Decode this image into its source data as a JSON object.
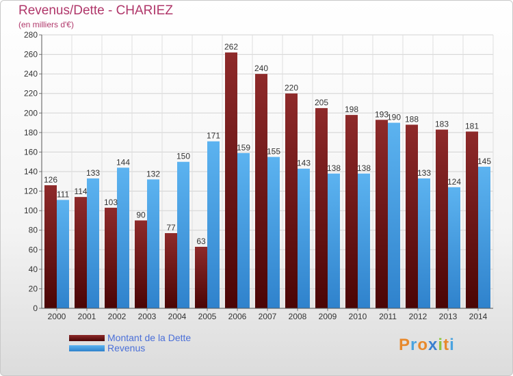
{
  "title": "Revenus/Dette - CHARIEZ",
  "subtitle": "(en milliers d'€)",
  "chart_data": {
    "type": "bar",
    "categories": [
      "2000",
      "2001",
      "2002",
      "2003",
      "2004",
      "2005",
      "2006",
      "2007",
      "2008",
      "2009",
      "2010",
      "2011",
      "2012",
      "2013",
      "2014"
    ],
    "series": [
      {
        "name": "Montant de la Dette",
        "color": "#7a1f1f",
        "values": [
          126,
          114,
          103,
          90,
          77,
          63,
          262,
          240,
          220,
          205,
          198,
          193,
          188,
          183,
          181
        ]
      },
      {
        "name": "Revenus",
        "color": "#4da3e8",
        "values": [
          111,
          133,
          144,
          132,
          150,
          171,
          159,
          155,
          143,
          138,
          138,
          190,
          133,
          124,
          145
        ]
      }
    ],
    "ylim": [
      0,
      280
    ],
    "yticks": [
      0,
      20,
      40,
      60,
      80,
      100,
      120,
      140,
      160,
      180,
      200,
      220,
      240,
      260,
      280
    ],
    "grid": true,
    "legend_position": "bottom-left"
  },
  "logo": {
    "letters": [
      "P",
      "r",
      "o",
      "x",
      "i",
      "t",
      "i"
    ],
    "colors": [
      "#e8892c",
      "#4aa3e0",
      "#e8892c",
      "#3a7fd0",
      "#8cc63f",
      "#e8892c",
      "#4aa3e0"
    ]
  }
}
